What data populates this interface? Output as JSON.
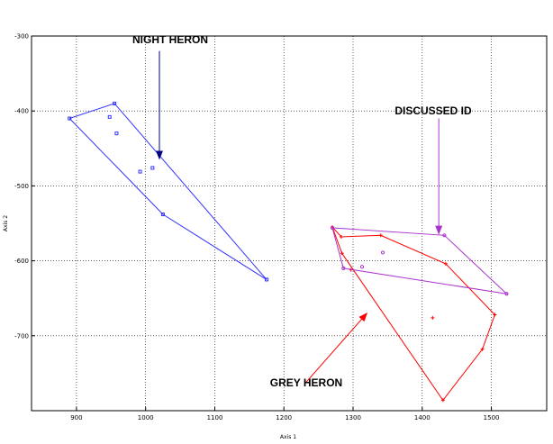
{
  "chart_data": {
    "type": "scatter",
    "xlabel": "Axis 1",
    "ylabel": "Axis 2",
    "xlim": [
      835,
      1580
    ],
    "ylim": [
      -800,
      -300
    ],
    "xticks": [
      900,
      1000,
      1100,
      1200,
      1300,
      1400,
      1500
    ],
    "yticks": [
      -300,
      -400,
      -500,
      -600,
      -700
    ],
    "grid": true,
    "series": [
      {
        "color": "#3333ff",
        "marker": "square",
        "hull": [
          [
            890,
            -410
          ],
          [
            955,
            -390
          ],
          [
            1175,
            -625
          ],
          [
            1025,
            -538
          ],
          [
            890,
            -410
          ]
        ],
        "points": [
          [
            890,
            -410
          ],
          [
            955,
            -390
          ],
          [
            948,
            -408
          ],
          [
            958,
            -430
          ],
          [
            1010,
            -476
          ],
          [
            992,
            -481
          ],
          [
            1025,
            -538
          ],
          [
            1175,
            -625
          ]
        ]
      },
      {
        "color": "#ff0000",
        "marker": "plus",
        "hull": [
          [
            1270,
            -555
          ],
          [
            1283,
            -568
          ],
          [
            1340,
            -566
          ],
          [
            1434,
            -604
          ],
          [
            1505,
            -672
          ],
          [
            1487,
            -718
          ],
          [
            1430,
            -786
          ],
          [
            1284,
            -590
          ],
          [
            1270,
            -555
          ]
        ],
        "points": [
          [
            1270,
            -555
          ],
          [
            1283,
            -568
          ],
          [
            1340,
            -566
          ],
          [
            1434,
            -604
          ],
          [
            1505,
            -672
          ],
          [
            1487,
            -718
          ],
          [
            1430,
            -786
          ],
          [
            1415,
            -676
          ],
          [
            1284,
            -590
          ],
          [
            1297,
            -612
          ]
        ]
      },
      {
        "color": "#aa33cc",
        "marker": "circle",
        "hull": [
          [
            1270,
            -556
          ],
          [
            1432,
            -566
          ],
          [
            1522,
            -644
          ],
          [
            1286,
            -610
          ],
          [
            1270,
            -556
          ]
        ],
        "points": [
          [
            1270,
            -556
          ],
          [
            1432,
            -566
          ],
          [
            1522,
            -644
          ],
          [
            1286,
            -610
          ],
          [
            1343,
            -589
          ],
          [
            1313,
            -608
          ]
        ]
      }
    ],
    "annotations": [
      {
        "text": "NIGHT HERON",
        "color": "#000080",
        "arrow_from": [
          1020,
          -320
        ],
        "arrow_to": [
          1020,
          -464
        ]
      },
      {
        "text": "DISCUSSED  ID",
        "color": "#aa33cc",
        "arrow_from": [
          1424,
          -410
        ],
        "arrow_to": [
          1424,
          -564
        ]
      },
      {
        "text": "GREY HERON",
        "color": "#ff0000",
        "arrow_from": [
          1232,
          -762
        ],
        "arrow_to": [
          1320,
          -670
        ]
      }
    ]
  }
}
